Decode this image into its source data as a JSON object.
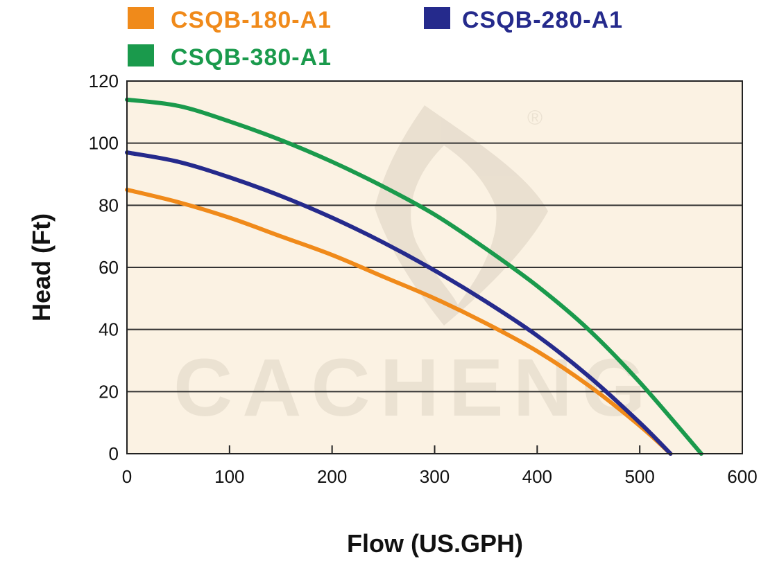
{
  "chart_data": {
    "type": "line",
    "title": "",
    "xlabel": "Flow (US.GPH)",
    "ylabel": "Head (Ft)",
    "xlim": [
      0,
      600
    ],
    "ylim": [
      0,
      120
    ],
    "xticks": [
      0,
      100,
      200,
      300,
      400,
      500,
      600
    ],
    "yticks": [
      0,
      20,
      40,
      60,
      80,
      100,
      120
    ],
    "grid": "horizontal",
    "legend_position": "top",
    "plot_background": "#fbf2e3",
    "watermark": "CACHENG",
    "series": [
      {
        "name": "CSQB-180-A1",
        "color": "#f08a1a",
        "x": [
          0,
          50,
          100,
          150,
          200,
          250,
          300,
          350,
          400,
          450,
          500,
          530
        ],
        "y": [
          85,
          81,
          76,
          70,
          64,
          57,
          50,
          42,
          33,
          22,
          9,
          0
        ]
      },
      {
        "name": "CSQB-280-A1",
        "color": "#252a8c",
        "x": [
          0,
          50,
          100,
          150,
          200,
          250,
          300,
          350,
          400,
          450,
          500,
          530
        ],
        "y": [
          97,
          94,
          89,
          83,
          76,
          68,
          59,
          49,
          38,
          25,
          10,
          0
        ]
      },
      {
        "name": "CSQB-380-A1",
        "color": "#1a9a4c",
        "x": [
          0,
          50,
          100,
          150,
          200,
          250,
          300,
          350,
          400,
          450,
          500,
          560
        ],
        "y": [
          114,
          112,
          107,
          101,
          94,
          86,
          77,
          66,
          54,
          40,
          23,
          0
        ]
      }
    ]
  }
}
